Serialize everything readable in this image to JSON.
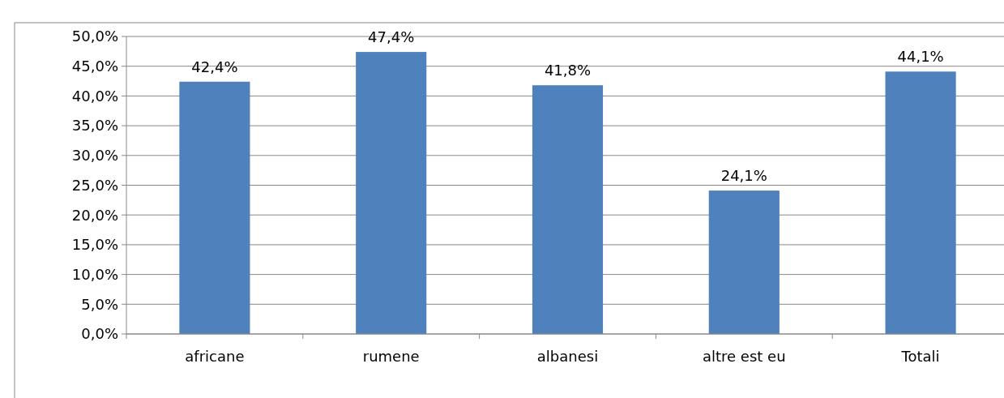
{
  "chart_data": {
    "type": "bar",
    "categories": [
      "africane",
      "rumene",
      "albanesi",
      "altre est eu",
      "Totali"
    ],
    "values": [
      42.4,
      47.4,
      41.8,
      24.1,
      44.1
    ],
    "value_labels": [
      "42,4%",
      "47,4%",
      "41,8%",
      "24,1%",
      "44,1%"
    ],
    "color": "#4f81bd",
    "ylim": [
      0,
      50
    ],
    "yticks": [
      {
        "value": 0,
        "label": "0,0%"
      },
      {
        "value": 5,
        "label": "5,0%"
      },
      {
        "value": 10,
        "label": "10,0%"
      },
      {
        "value": 15,
        "label": "15,0%"
      },
      {
        "value": 20,
        "label": "20,0%"
      },
      {
        "value": 25,
        "label": "25,0%"
      },
      {
        "value": 30,
        "label": "30,0%"
      },
      {
        "value": 35,
        "label": "35,0%"
      },
      {
        "value": 40,
        "label": "40,0%"
      },
      {
        "value": 45,
        "label": "45,0%"
      },
      {
        "value": 50,
        "label": "50,0%"
      }
    ],
    "grid": "y"
  }
}
